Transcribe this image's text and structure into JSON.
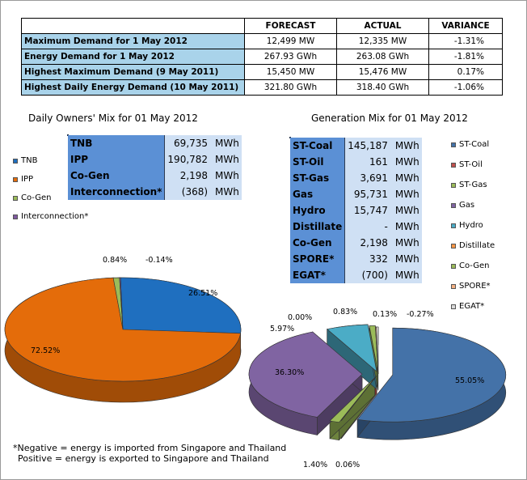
{
  "summary": {
    "headers": [
      "",
      "FORECAST",
      "ACTUAL",
      "VARIANCE"
    ],
    "rows": [
      {
        "label": "Maximum Demand for 1 May 2012",
        "forecast": "12,499  MW",
        "actual": "12,335  MW",
        "variance": "-1.31%"
      },
      {
        "label": "Energy Demand for 1 May 2012",
        "forecast": "267.93  GWh",
        "actual": "263.08  GWh",
        "variance": "-1.81%"
      },
      {
        "label": "Highest Maximum Demand (9 May 2011)",
        "forecast": "15,450  MW",
        "actual": "15,476  MW",
        "variance": "0.17%"
      },
      {
        "label": "Highest Daily Energy Demand (10 May 2011)",
        "forecast": "321.80  GWh",
        "actual": "318.40  GWh",
        "variance": "-1.06%"
      }
    ]
  },
  "owners": {
    "title": "Daily Owners' Mix for 01 May 2012",
    "table": [
      {
        "name": "TNB",
        "value": "69,735",
        "unit": "MWh"
      },
      {
        "name": "IPP",
        "value": "190,782",
        "unit": "MWh"
      },
      {
        "name": "Co-Gen",
        "value": "2,198",
        "unit": "MWh"
      },
      {
        "name": "Interconnection*",
        "value": "(368)",
        "unit": "MWh"
      }
    ],
    "legend": [
      "TNB",
      "IPP",
      "Co-Gen",
      "Interconnection*"
    ]
  },
  "generation": {
    "title": "Generation Mix for 01 May 2012",
    "table": [
      {
        "name": "ST-Coal",
        "value": "145,187",
        "unit": "MWh"
      },
      {
        "name": "ST-Oil",
        "value": "161",
        "unit": "MWh"
      },
      {
        "name": "ST-Gas",
        "value": "3,691",
        "unit": "MWh"
      },
      {
        "name": "Gas",
        "value": "95,731",
        "unit": "MWh"
      },
      {
        "name": "Hydro",
        "value": "15,747",
        "unit": "MWh"
      },
      {
        "name": "Distillate",
        "value": "-",
        "unit": "MWh"
      },
      {
        "name": "Co-Gen",
        "value": "2,198",
        "unit": "MWh"
      },
      {
        "name": "SPORE*",
        "value": "332",
        "unit": "MWh"
      },
      {
        "name": "EGAT*",
        "value": "(700)",
        "unit": "MWh"
      }
    ],
    "legend": [
      "ST-Coal",
      "ST-Oil",
      "ST-Gas",
      "Gas",
      "Hydro",
      "Distillate",
      "Co-Gen",
      "SPORE*",
      "EGAT*"
    ]
  },
  "note": {
    "line1": "*Negative = energy is imported from Singapore and Thailand",
    "line2": "Positive = energy is exported to Singapore and Thailand"
  },
  "colors": {
    "TNB": "#1f6fbf",
    "IPP": "#e46c0a",
    "Co-Gen": "#9bbb59",
    "Interconnection*": "#7f5aa0",
    "ST-Coal": "#4472a8",
    "ST-Oil": "#c0504d",
    "ST-Gas": "#9bbb59",
    "Gas": "#8064a2",
    "Hydro": "#4bacc6",
    "Distillate": "#f79646",
    "SPORE*": "#f4b183",
    "EGAT*": "#d9d9d9"
  },
  "chart_data": [
    {
      "type": "pie",
      "title": "Daily Owners' Mix for 01 May 2012",
      "categories": [
        "TNB",
        "IPP",
        "Co-Gen",
        "Interconnection*"
      ],
      "values": [
        26.51,
        72.52,
        0.84,
        -0.14
      ],
      "labels": [
        "26.51%",
        "72.52%",
        "0.84%",
        "-0.14%"
      ]
    },
    {
      "type": "pie",
      "title": "Generation Mix for 01 May 2012",
      "categories": [
        "ST-Coal",
        "ST-Oil",
        "ST-Gas",
        "Gas",
        "Hydro",
        "Distillate",
        "Co-Gen",
        "SPORE*",
        "EGAT*"
      ],
      "values": [
        55.05,
        0.06,
        1.4,
        36.3,
        5.97,
        0.0,
        0.83,
        0.13,
        -0.27
      ],
      "labels": [
        "55.05%",
        "0.06%",
        "1.40%",
        "36.30%",
        "5.97%",
        "0.00%",
        "0.83%",
        "0.13%",
        "-0.27%"
      ]
    }
  ]
}
